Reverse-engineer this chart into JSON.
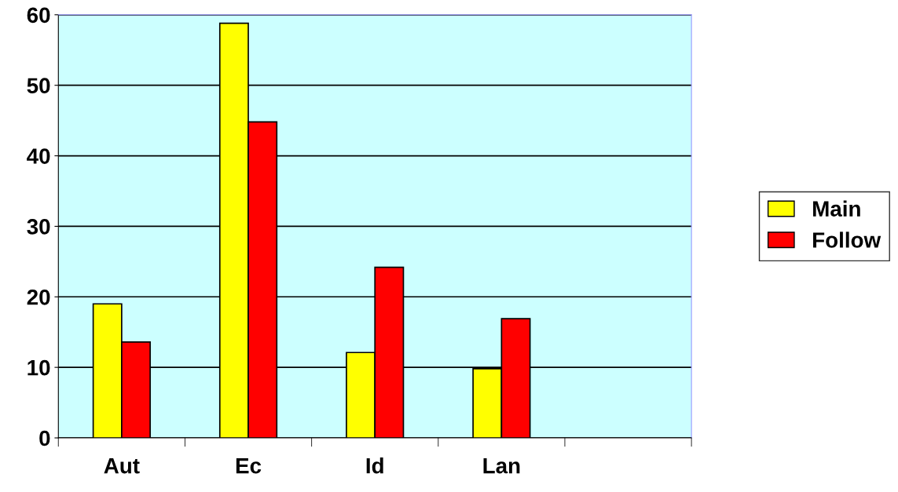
{
  "chart_data": {
    "type": "bar",
    "categories": [
      "Aut",
      "Ec",
      "Id",
      "Lan",
      null
    ],
    "series": [
      {
        "name": "Main",
        "color": "#ffff00",
        "values": [
          19,
          58.8,
          12.1,
          9.8,
          null
        ]
      },
      {
        "name": "Follow",
        "color": "#ff0000",
        "values": [
          13.6,
          44.8,
          24.2,
          16.9,
          null
        ]
      }
    ],
    "ylim": [
      0,
      60
    ],
    "yticks": [
      0,
      10,
      20,
      30,
      40,
      50,
      60
    ],
    "grid": "y",
    "legend": "right"
  }
}
